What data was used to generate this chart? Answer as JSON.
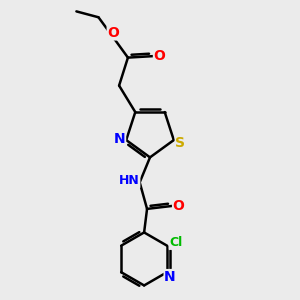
{
  "bg_color": "#ebebeb",
  "bond_color": "#000000",
  "bond_width": 1.8,
  "atom_colors": {
    "O": "#ff0000",
    "N": "#0000ff",
    "S": "#ccaa00",
    "Cl": "#00bb00",
    "C": "#000000",
    "H": "#808080"
  },
  "font_size": 9,
  "fig_size": [
    3.0,
    3.0
  ],
  "dpi": 100
}
